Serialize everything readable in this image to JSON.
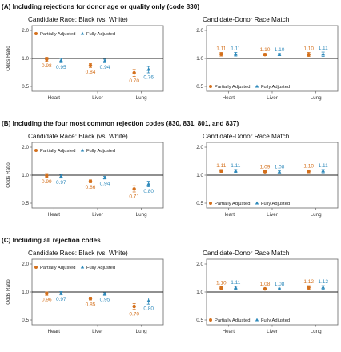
{
  "colors": {
    "partial": "#D4701C",
    "full": "#2D89BB",
    "refline": "#222222",
    "frame": "#666666"
  },
  "chart_data": [
    {
      "type": "scatter",
      "section_title": "(A)   Including rejections for donor age or quality only (code 830)",
      "panels": [
        {
          "title": "Candidate Race: Black (vs. White)",
          "ylabel": "Odds Ratio",
          "yscale": "log",
          "ylim": [
            0.5,
            2.0
          ],
          "yticks": [
            "0.5",
            "1.0",
            "2.0"
          ],
          "categories": [
            "Heart",
            "Liver",
            "Lung"
          ],
          "legend": "top-left",
          "reference_line": 1.0,
          "series": [
            {
              "name": "Partially Adjusted",
              "values": [
                0.98,
                0.84,
                0.7
              ],
              "labels": [
                "0.98",
                "0.84",
                "0.70"
              ],
              "ci": [
                [
                  0.93,
                  1.03
                ],
                [
                  0.8,
                  0.88
                ],
                [
                  0.64,
                  0.76
                ]
              ]
            },
            {
              "name": "Fully Adjusted",
              "values": [
                0.95,
                0.94,
                0.76
              ],
              "labels": [
                "0.95",
                "0.94",
                "0.76"
              ],
              "ci": [
                [
                  0.9,
                  1.0
                ],
                [
                  0.9,
                  0.98
                ],
                [
                  0.7,
                  0.82
                ]
              ]
            }
          ]
        },
        {
          "title": "Candidate-Donor Race Match",
          "ylabel": "",
          "yscale": "log",
          "ylim": [
            0.5,
            2.0
          ],
          "yticks": [
            "0.5",
            "1.0",
            "2.0"
          ],
          "categories": [
            "Heart",
            "Liver",
            "Lung"
          ],
          "legend": "bottom-left",
          "reference_line": 1.0,
          "series": [
            {
              "name": "Partially Adjusted",
              "values": [
                1.11,
                1.1,
                1.1
              ],
              "labels": [
                "1.11",
                "1.10",
                "1.10"
              ],
              "ci": [
                [
                  1.06,
                  1.16
                ],
                [
                  1.07,
                  1.13
                ],
                [
                  1.05,
                  1.16
                ]
              ]
            },
            {
              "name": "Fully Adjusted",
              "values": [
                1.11,
                1.1,
                1.11
              ],
              "labels": [
                "1.11",
                "1.10",
                "1.11"
              ],
              "ci": [
                [
                  1.06,
                  1.16
                ],
                [
                  1.07,
                  1.13
                ],
                [
                  1.05,
                  1.17
                ]
              ]
            }
          ]
        }
      ]
    },
    {
      "type": "scatter",
      "section_title": "(B)   Including the four most common rejection codes (830, 831, 801, and 837)",
      "panels": [
        {
          "title": "Candidate Race: Black (vs. White)",
          "ylabel": "Odds Ratio",
          "yscale": "log",
          "ylim": [
            0.5,
            2.0
          ],
          "yticks": [
            "0.5",
            "1.0",
            "2.0"
          ],
          "categories": [
            "Heart",
            "Liver",
            "Lung"
          ],
          "legend": "top-left",
          "reference_line": 1.0,
          "series": [
            {
              "name": "Partially Adjusted",
              "values": [
                0.99,
                0.86,
                0.71
              ],
              "labels": [
                "0.99",
                "0.86",
                "0.71"
              ],
              "ci": [
                [
                  0.95,
                  1.04
                ],
                [
                  0.83,
                  0.89
                ],
                [
                  0.66,
                  0.77
                ]
              ]
            },
            {
              "name": "Fully Adjusted",
              "values": [
                0.97,
                0.94,
                0.8
              ],
              "labels": [
                "0.97",
                "0.94",
                "0.80"
              ],
              "ci": [
                [
                  0.93,
                  1.02
                ],
                [
                  0.91,
                  0.97
                ],
                [
                  0.75,
                  0.86
                ]
              ]
            }
          ]
        },
        {
          "title": "Candidate-Donor Race Match",
          "ylabel": "",
          "yscale": "log",
          "ylim": [
            0.5,
            2.0
          ],
          "yticks": [
            "0.5",
            "1.0",
            "2.0"
          ],
          "categories": [
            "Heart",
            "Liver",
            "Lung"
          ],
          "legend": "bottom-left",
          "reference_line": 1.0,
          "series": [
            {
              "name": "Partially Adjusted",
              "values": [
                1.11,
                1.09,
                1.1
              ],
              "labels": [
                "1.11",
                "1.09",
                "1.10"
              ],
              "ci": [
                [
                  1.07,
                  1.15
                ],
                [
                  1.07,
                  1.12
                ],
                [
                  1.06,
                  1.14
                ]
              ]
            },
            {
              "name": "Fully Adjusted",
              "values": [
                1.11,
                1.08,
                1.11
              ],
              "labels": [
                "1.11",
                "1.08",
                "1.11"
              ],
              "ci": [
                [
                  1.07,
                  1.15
                ],
                [
                  1.06,
                  1.11
                ],
                [
                  1.06,
                  1.15
                ]
              ]
            }
          ]
        }
      ]
    },
    {
      "type": "scatter",
      "section_title": "(C)   Including all rejection codes",
      "panels": [
        {
          "title": "Candidate Race: Black (vs. White)",
          "ylabel": "Odds Ratio",
          "yscale": "log",
          "ylim": [
            0.5,
            2.0
          ],
          "yticks": [
            "0.5",
            "1.0",
            "2.0"
          ],
          "categories": [
            "Heart",
            "Liver",
            "Lung"
          ],
          "legend": "top-left",
          "reference_line": 1.0,
          "series": [
            {
              "name": "Partially Adjusted",
              "values": [
                0.96,
                0.85,
                0.7
              ],
              "labels": [
                "0.96",
                "0.85",
                "0.70"
              ],
              "ci": [
                [
                  0.92,
                  1.0
                ],
                [
                  0.82,
                  0.88
                ],
                [
                  0.65,
                  0.75
                ]
              ]
            },
            {
              "name": "Fully Adjusted",
              "values": [
                0.97,
                0.95,
                0.8
              ],
              "labels": [
                "0.97",
                "0.95",
                "0.80"
              ],
              "ci": [
                [
                  0.93,
                  1.01
                ],
                [
                  0.92,
                  0.98
                ],
                [
                  0.74,
                  0.86
                ]
              ]
            }
          ]
        },
        {
          "title": "Candidate-Donor Race Match",
          "ylabel": "",
          "yscale": "log",
          "ylim": [
            0.5,
            2.0
          ],
          "yticks": [
            "0.5",
            "1.0",
            "2.0"
          ],
          "categories": [
            "Heart",
            "Liver",
            "Lung"
          ],
          "legend": "bottom-left",
          "reference_line": 1.0,
          "series": [
            {
              "name": "Partially Adjusted",
              "values": [
                1.1,
                1.08,
                1.12
              ],
              "labels": [
                "1.10",
                "1.08",
                "1.12"
              ],
              "ci": [
                [
                  1.06,
                  1.14
                ],
                [
                  1.06,
                  1.1
                ],
                [
                  1.07,
                  1.17
                ]
              ]
            },
            {
              "name": "Fully Adjusted",
              "values": [
                1.11,
                1.08,
                1.12
              ],
              "labels": [
                "1.11",
                "1.08",
                "1.12"
              ],
              "ci": [
                [
                  1.07,
                  1.15
                ],
                [
                  1.06,
                  1.1
                ],
                [
                  1.07,
                  1.17
                ]
              ]
            }
          ]
        }
      ]
    }
  ]
}
